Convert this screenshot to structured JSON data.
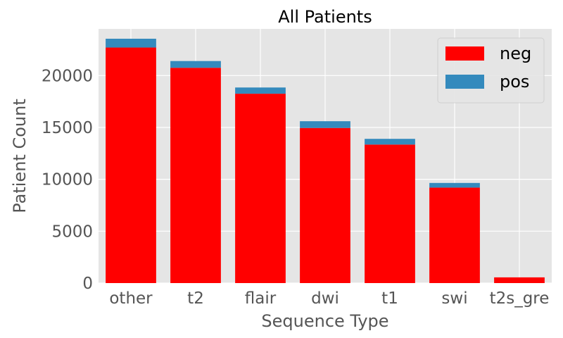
{
  "chart_data": {
    "type": "bar",
    "stacked": true,
    "title": "All Patients",
    "xlabel": "Sequence Type",
    "ylabel": "Patient Count",
    "categories": [
      "other",
      "t2",
      "flair",
      "dwi",
      "t1",
      "swi",
      "t2s_gre"
    ],
    "series": [
      {
        "name": "neg",
        "color": "#ff0000",
        "values": [
          22700,
          20750,
          18250,
          14950,
          13350,
          9200,
          550
        ]
      },
      {
        "name": "pos",
        "color": "#348abd",
        "values": [
          850,
          650,
          600,
          650,
          550,
          450,
          0
        ]
      }
    ],
    "ylim": [
      0,
      24500
    ],
    "yticks": [
      0,
      5000,
      10000,
      15000,
      20000
    ],
    "ytick_labels": [
      "0",
      "5000",
      "10000",
      "15000",
      "20000"
    ],
    "grid": true,
    "legend_position": "top-right",
    "background_color": "#e5e5e5",
    "grid_color": "#ffffff"
  }
}
